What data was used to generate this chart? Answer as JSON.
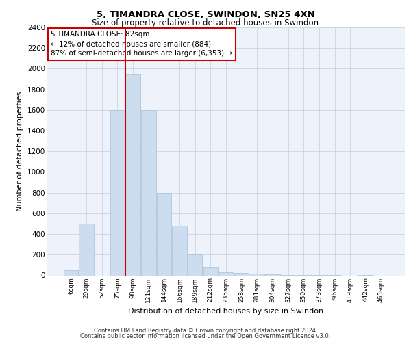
{
  "title1": "5, TIMANDRA CLOSE, SWINDON, SN25 4XN",
  "title2": "Size of property relative to detached houses in Swindon",
  "xlabel": "Distribution of detached houses by size in Swindon",
  "ylabel": "Number of detached properties",
  "footer1": "Contains HM Land Registry data © Crown copyright and database right 2024.",
  "footer2": "Contains public sector information licensed under the Open Government Licence v3.0.",
  "annotation_line1": "5 TIMANDRA CLOSE: 82sqm",
  "annotation_line2": "← 12% of detached houses are smaller (884)",
  "annotation_line3": "87% of semi-detached houses are larger (6,353) →",
  "bar_color": "#ccddf0",
  "bar_edge_color": "#aabdd8",
  "redline_color": "#cc0000",
  "annotation_box_color": "#cc0000",
  "categories": [
    "6sqm",
    "29sqm",
    "52sqm",
    "75sqm",
    "98sqm",
    "121sqm",
    "144sqm",
    "166sqm",
    "189sqm",
    "212sqm",
    "235sqm",
    "258sqm",
    "281sqm",
    "304sqm",
    "327sqm",
    "350sqm",
    "373sqm",
    "396sqm",
    "419sqm",
    "442sqm",
    "465sqm"
  ],
  "values": [
    50,
    500,
    0,
    1600,
    1950,
    1600,
    800,
    480,
    200,
    75,
    30,
    20,
    15,
    8,
    5,
    3,
    2,
    1,
    0,
    2,
    0
  ],
  "ylim": [
    0,
    2400
  ],
  "yticks": [
    0,
    200,
    400,
    600,
    800,
    1000,
    1200,
    1400,
    1600,
    1800,
    2000,
    2200,
    2400
  ],
  "redline_bar_index": 3,
  "grid_color": "#ccd5e5",
  "bg_color": "#eef2fa"
}
